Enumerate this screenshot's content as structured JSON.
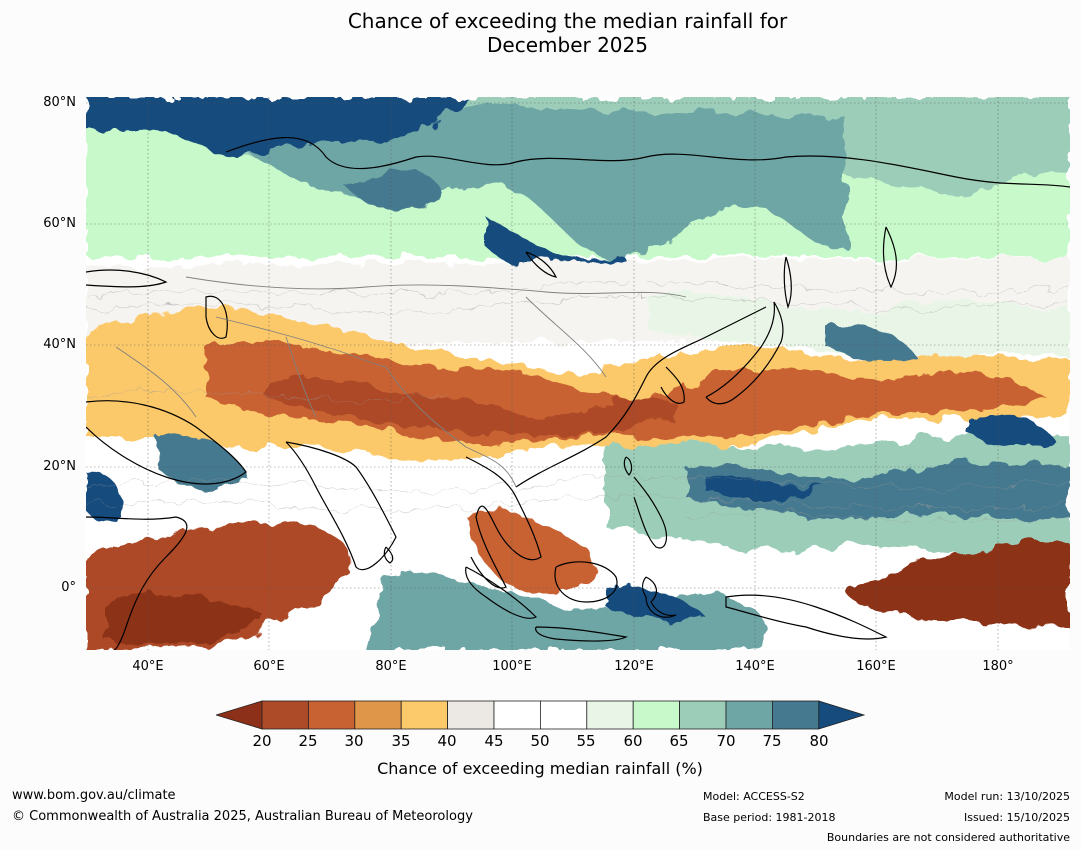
{
  "title": {
    "line1": "Chance of exceeding the median rainfall for",
    "line2": "December 2025"
  },
  "map": {
    "lat_labels": [
      "80°N",
      "60°N",
      "40°N",
      "20°N",
      "0°"
    ],
    "lon_labels": [
      "40°E",
      "60°E",
      "80°E",
      "100°E",
      "120°E",
      "140°E",
      "160°E",
      "180°"
    ],
    "extent": {
      "lon_min": 30,
      "lon_max": 192,
      "lat_min": -10,
      "lat_max": 81
    }
  },
  "colorbar": {
    "ticks": [
      "20",
      "25",
      "30",
      "35",
      "40",
      "45",
      "50",
      "55",
      "60",
      "65",
      "70",
      "75",
      "80"
    ],
    "colors": {
      "below_20": "#8c3019",
      "20_25": "#ad4a27",
      "25_30": "#c86232",
      "30_35": "#df9648",
      "35_40": "#fcc96b",
      "40_45": "#ece9e5",
      "45_50": "#ffffff",
      "50_55": "#ffffff",
      "55_60": "#e9f6e7",
      "60_65": "#c8f9cb",
      "65_70": "#9bcdb9",
      "70_75": "#6ea5a5",
      "75_80": "#44798f",
      "above_80": "#154b7d"
    },
    "label": "Chance of exceeding median rainfall (%)"
  },
  "footer": {
    "website": "www.bom.gov.au/climate",
    "copyright": "© Commonwealth of Australia 2025, Australian Bureau of Meteorology",
    "model": "Model: ACCESS-S2",
    "base_period": "Base period: 1981-2018",
    "model_run": "Model run: 13/10/2025",
    "issued": "Issued: 15/10/2025",
    "disclaimer": "Boundaries are not considered authoritative"
  }
}
